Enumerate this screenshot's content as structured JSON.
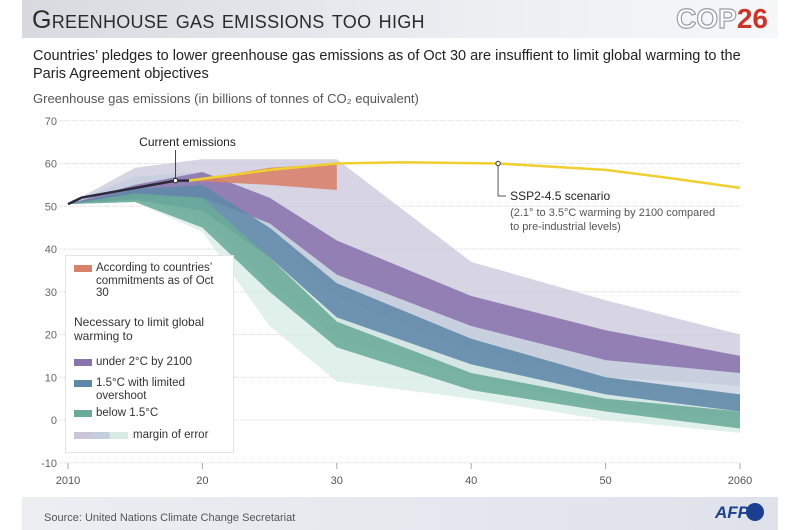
{
  "header": {
    "title": "Greenhouse gas emissions too high",
    "logo_text": "COP",
    "logo_number": "26"
  },
  "subtitle": "Countries’ pledges to lower greenhouse gas emissions as of Oct 30 are insuffient to limit global warming to the Paris Agreement objectives",
  "footer": {
    "source": "Source: United Nations Climate Change Secretariat",
    "logo": "AFP"
  },
  "legend": {
    "commitments": "According to countries’ commitments as of Oct 30",
    "necessary_heading": "Necessary to limit global warming to",
    "under2": "under 2°C by 2100",
    "limited_overshoot": "1.5°C with limited overshoot",
    "below15": "below 1.5°C",
    "margin": "margin of error"
  },
  "annotations": {
    "current": "Current emissions",
    "ssp_title": "SSP2-4.5 scenario",
    "ssp_note": "(2.1° to 3.5°C warming by 2100 compared to pre-industrial levels)"
  },
  "colors": {
    "under2": "#8a73ad",
    "under2_margin": "#c9c5db",
    "overshoot": "#5e87a8",
    "overshoot_margin": "#c3cfde",
    "below15": "#6aaa98",
    "below15_margin": "#d6ebe3",
    "commitments": "#d9826b",
    "ssp": "#f0d030",
    "current": "#2a2a3a"
  },
  "chart_data": {
    "type": "area",
    "ylabel": "Greenhouse gas emissions (in billions of tonnes of CO₂ equivalent)",
    "xlim": [
      2010,
      2060
    ],
    "ylim": [
      -10,
      70
    ],
    "xticks": [
      "2010",
      "20",
      "30",
      "40",
      "50",
      "2060"
    ],
    "xtick_values": [
      2010,
      2020,
      2030,
      2040,
      2050,
      2060
    ],
    "yticks": [
      70,
      60,
      50,
      40,
      30,
      20,
      10,
      0,
      -10
    ],
    "grid": true,
    "legend_position": "left",
    "years": [
      2010,
      2015,
      2020,
      2025,
      2030,
      2040,
      2050,
      2060
    ],
    "bands": [
      {
        "key": "under2_margin",
        "lower": [
          50.5,
          53,
          50,
          38,
          28,
          17,
          10,
          8
        ],
        "upper": [
          50.5,
          59,
          61,
          61,
          61,
          37,
          28,
          20
        ]
      },
      {
        "key": "overshoot_margin",
        "lower": [
          50.5,
          52,
          47,
          32,
          19,
          10,
          3,
          0
        ],
        "upper": [
          50.5,
          57,
          58,
          52,
          38,
          25,
          17,
          12
        ]
      },
      {
        "key": "below15_margin",
        "lower": [
          50.5,
          51,
          44,
          22,
          9,
          5,
          0,
          -3
        ],
        "upper": [
          50.5,
          55,
          55,
          45,
          29,
          15,
          8,
          4
        ]
      },
      {
        "key": "under2",
        "name": "under 2°C by 2100",
        "lower": [
          50.5,
          52,
          52,
          46,
          34,
          22,
          14,
          11
        ],
        "upper": [
          50.5,
          55,
          58,
          52,
          42,
          29,
          21,
          15
        ]
      },
      {
        "key": "overshoot",
        "name": "1.5°C with limited overshoot",
        "lower": [
          50.5,
          51.5,
          49,
          38,
          24,
          13,
          6,
          2
        ],
        "upper": [
          50.5,
          54,
          55,
          45,
          32,
          19,
          10,
          6
        ]
      },
      {
        "key": "below15",
        "name": "below 1.5°C",
        "lower": [
          50.5,
          51,
          45,
          30,
          17,
          7,
          2,
          -2
        ],
        "upper": [
          50.5,
          53,
          52,
          38,
          23,
          11,
          5,
          2
        ]
      }
    ],
    "commitments": {
      "years": [
        2019,
        2025,
        2030
      ],
      "lower": [
        56,
        55,
        53.8
      ],
      "upper": [
        56,
        59,
        60
      ]
    },
    "current_emissions": {
      "years": [
        2010,
        2011,
        2018,
        2019
      ],
      "values": [
        50.5,
        52,
        56,
        56
      ],
      "marker_year": 2018
    },
    "ssp": {
      "name": "SSP2-4.5 scenario",
      "years": [
        2019,
        2025,
        2030,
        2035,
        2042,
        2050,
        2055,
        2060
      ],
      "values": [
        56,
        58.5,
        60,
        60.3,
        60,
        58.5,
        56.5,
        54.3
      ],
      "marker_year": 2042
    }
  }
}
